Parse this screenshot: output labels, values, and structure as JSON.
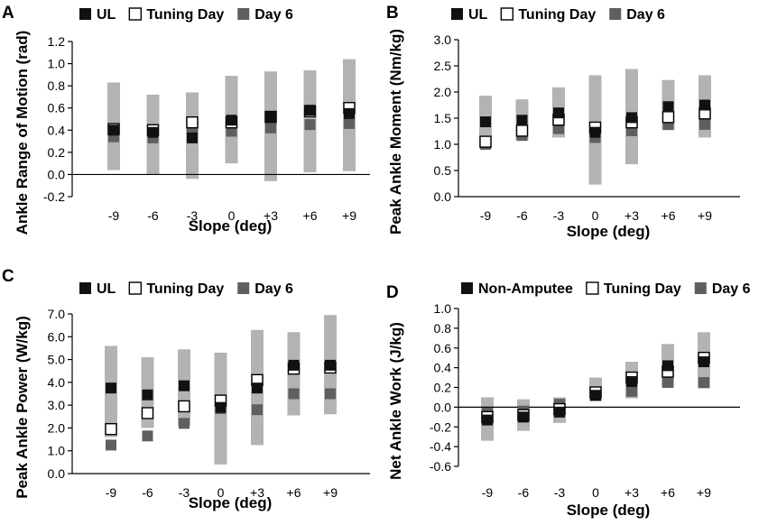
{
  "colors": {
    "range_bar": "#b3b3b3",
    "ul_marker": "#111111",
    "tuning_marker_fill": "#ffffff",
    "tuning_marker_stroke": "#000000",
    "day6_marker": "#5f5f5f"
  },
  "chart_data": [
    {
      "panel": "A",
      "type": "scatter",
      "title": "",
      "xlabel": "Slope (deg)",
      "ylabel": "Ankle Range of Motion (rad)",
      "categories": [
        "-9",
        "-6",
        "-3",
        "0",
        "+3",
        "+6",
        "+9"
      ],
      "ylim": [
        -0.2,
        1.2
      ],
      "yticks": [
        "-0.2",
        "0.0",
        "0.2",
        "0.4",
        "0.6",
        "0.8",
        "1.0",
        "1.2"
      ],
      "ytick_values": [
        -0.2,
        0.0,
        0.2,
        0.4,
        0.6,
        0.8,
        1.0,
        1.2
      ],
      "legend": [
        "UL",
        "Tuning Day",
        "Day 6"
      ],
      "ranges": [
        [
          0.04,
          0.83
        ],
        [
          0.0,
          0.72
        ],
        [
          -0.04,
          0.74
        ],
        [
          0.1,
          0.89
        ],
        [
          -0.06,
          0.93
        ],
        [
          0.02,
          0.94
        ],
        [
          0.03,
          1.04
        ]
      ],
      "series": [
        {
          "name": "UL",
          "values": [
            0.4,
            0.38,
            0.33,
            0.49,
            0.52,
            0.58,
            0.55
          ]
        },
        {
          "name": "Tuning Day",
          "values": [
            0.41,
            0.4,
            0.47,
            0.47,
            0.52,
            0.57,
            0.6
          ]
        },
        {
          "name": "Day 6",
          "values": [
            0.34,
            0.33,
            0.39,
            0.39,
            0.42,
            0.45,
            0.46
          ]
        }
      ]
    },
    {
      "panel": "B",
      "type": "scatter",
      "title": "",
      "xlabel": "Slope (deg)",
      "ylabel": "Peak Ankle Moment (Nm/kg)",
      "categories": [
        "-9",
        "-6",
        "-3",
        "0",
        "+3",
        "+6",
        "+9"
      ],
      "ylim": [
        0.0,
        3.0
      ],
      "yticks": [
        "0.0",
        "0.5",
        "1.0",
        "1.5",
        "2.0",
        "2.5",
        "3.0"
      ],
      "ytick_values": [
        0.0,
        0.5,
        1.0,
        1.5,
        2.0,
        2.5,
        3.0
      ],
      "legend": [
        "UL",
        "Tuning Day",
        "Day 6"
      ],
      "ranges": [
        [
          0.92,
          1.93
        ],
        [
          1.08,
          1.86
        ],
        [
          1.13,
          2.09
        ],
        [
          0.23,
          2.32
        ],
        [
          0.62,
          2.44
        ],
        [
          1.27,
          2.23
        ],
        [
          1.13,
          2.32
        ]
      ],
      "series": [
        {
          "name": "UL",
          "values": [
            1.43,
            1.46,
            1.6,
            1.23,
            1.51,
            1.72,
            1.75
          ]
        },
        {
          "name": "Tuning Day",
          "values": [
            1.05,
            1.26,
            1.47,
            1.32,
            1.42,
            1.52,
            1.59
          ]
        },
        {
          "name": "Day 6",
          "values": [
            1.0,
            1.17,
            1.3,
            1.13,
            1.26,
            1.38,
            1.38
          ]
        }
      ]
    },
    {
      "panel": "C",
      "type": "scatter",
      "title": "",
      "xlabel": "Slope (deg)",
      "ylabel": "Peak Ankle Power (W/kg)",
      "categories": [
        "-9",
        "-6",
        "-3",
        "0",
        "+3",
        "+6",
        "+9"
      ],
      "ylim": [
        0.0,
        7.0
      ],
      "yticks": [
        "0.0",
        "1.0",
        "2.0",
        "3.0",
        "4.0",
        "5.0",
        "6.0",
        "7.0"
      ],
      "ytick_values": [
        0.0,
        1.0,
        2.0,
        3.0,
        4.0,
        5.0,
        6.0,
        7.0
      ],
      "legend": [
        "UL",
        "Tuning Day",
        "Day 6"
      ],
      "ranges": [
        [
          1.6,
          5.6
        ],
        [
          2.0,
          5.1
        ],
        [
          2.1,
          5.45
        ],
        [
          0.4,
          5.3
        ],
        [
          1.25,
          6.3
        ],
        [
          2.55,
          6.2
        ],
        [
          2.6,
          6.95
        ]
      ],
      "series": [
        {
          "name": "UL",
          "values": [
            3.75,
            3.45,
            3.85,
            2.9,
            3.75,
            4.75,
            4.75
          ]
        },
        {
          "name": "Tuning Day",
          "values": [
            1.95,
            2.65,
            2.95,
            3.2,
            4.1,
            4.6,
            4.65
          ]
        },
        {
          "name": "Day 6",
          "values": [
            1.25,
            1.65,
            2.2,
            2.85,
            2.8,
            3.5,
            3.5
          ]
        }
      ]
    },
    {
      "panel": "D",
      "type": "scatter",
      "title": "",
      "xlabel": "Slope (deg)",
      "ylabel": "Net Ankle Work (J/kg)",
      "categories": [
        "-9",
        "-6",
        "-3",
        "0",
        "+3",
        "+6",
        "+9"
      ],
      "ylim": [
        -0.6,
        1.0
      ],
      "yticks": [
        "-0.6",
        "-0.4",
        "-0.2",
        "0.0",
        "0.2",
        "0.4",
        "0.6",
        "0.8",
        "1.0"
      ],
      "ytick_values": [
        -0.6,
        -0.4,
        -0.2,
        0.0,
        0.2,
        0.4,
        0.6,
        0.8,
        1.0
      ],
      "legend": [
        "Non-Amputee",
        "Tuning Day",
        "Day 6"
      ],
      "ranges": [
        [
          -0.34,
          0.1
        ],
        [
          -0.24,
          0.08
        ],
        [
          -0.16,
          0.1
        ],
        [
          0.06,
          0.3
        ],
        [
          0.09,
          0.46
        ],
        [
          0.2,
          0.64
        ],
        [
          0.19,
          0.76
        ]
      ],
      "series": [
        {
          "name": "Non-Amputee",
          "values": [
            -0.13,
            -0.1,
            -0.05,
            0.12,
            0.26,
            0.42,
            0.46
          ]
        },
        {
          "name": "Tuning Day",
          "values": [
            -0.1,
            -0.08,
            -0.02,
            0.15,
            0.3,
            0.36,
            0.5
          ]
        },
        {
          "name": "Day 6",
          "values": [
            -0.06,
            -0.04,
            0.03,
            0.13,
            0.16,
            0.25,
            0.25
          ]
        }
      ]
    }
  ]
}
